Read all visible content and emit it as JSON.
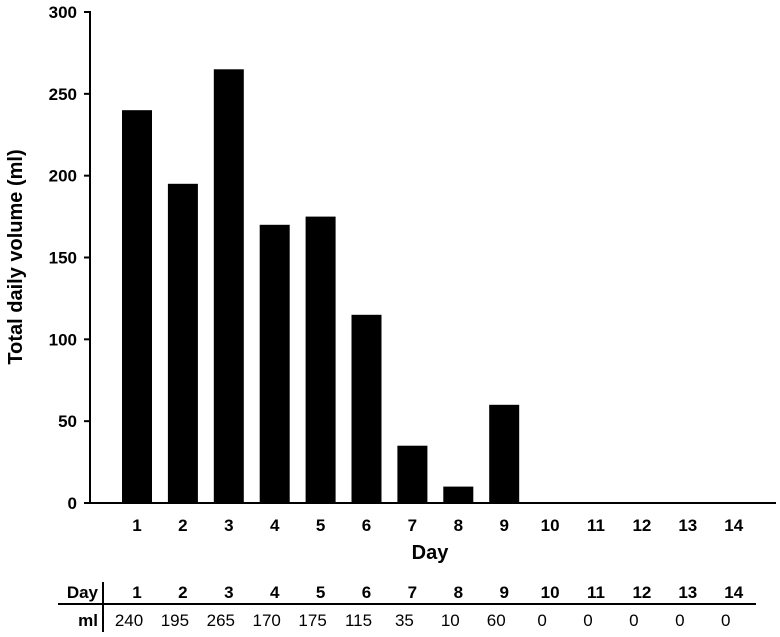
{
  "chart_data": {
    "type": "bar",
    "xlabel": "Day",
    "ylabel": "Total daily volume (ml)",
    "categories": [
      "1",
      "2",
      "3",
      "4",
      "5",
      "6",
      "7",
      "8",
      "9",
      "10",
      "11",
      "12",
      "13",
      "14"
    ],
    "values": [
      240,
      195,
      265,
      170,
      175,
      115,
      35,
      10,
      60,
      0,
      0,
      0,
      0,
      0
    ],
    "ylim": [
      0,
      300
    ],
    "yticks": [
      0,
      50,
      100,
      150,
      200,
      250,
      300
    ],
    "grid": false,
    "bar_color": "#000000"
  },
  "table": {
    "row_header_day": "Day",
    "row_header_ml": "ml",
    "days": [
      "1",
      "2",
      "3",
      "4",
      "5",
      "6",
      "7",
      "8",
      "9",
      "10",
      "11",
      "12",
      "13",
      "14"
    ],
    "ml": [
      "240",
      "195",
      "265",
      "170",
      "175",
      "115",
      "35",
      "10",
      "60",
      "0",
      "0",
      "0",
      "0",
      "0"
    ]
  }
}
